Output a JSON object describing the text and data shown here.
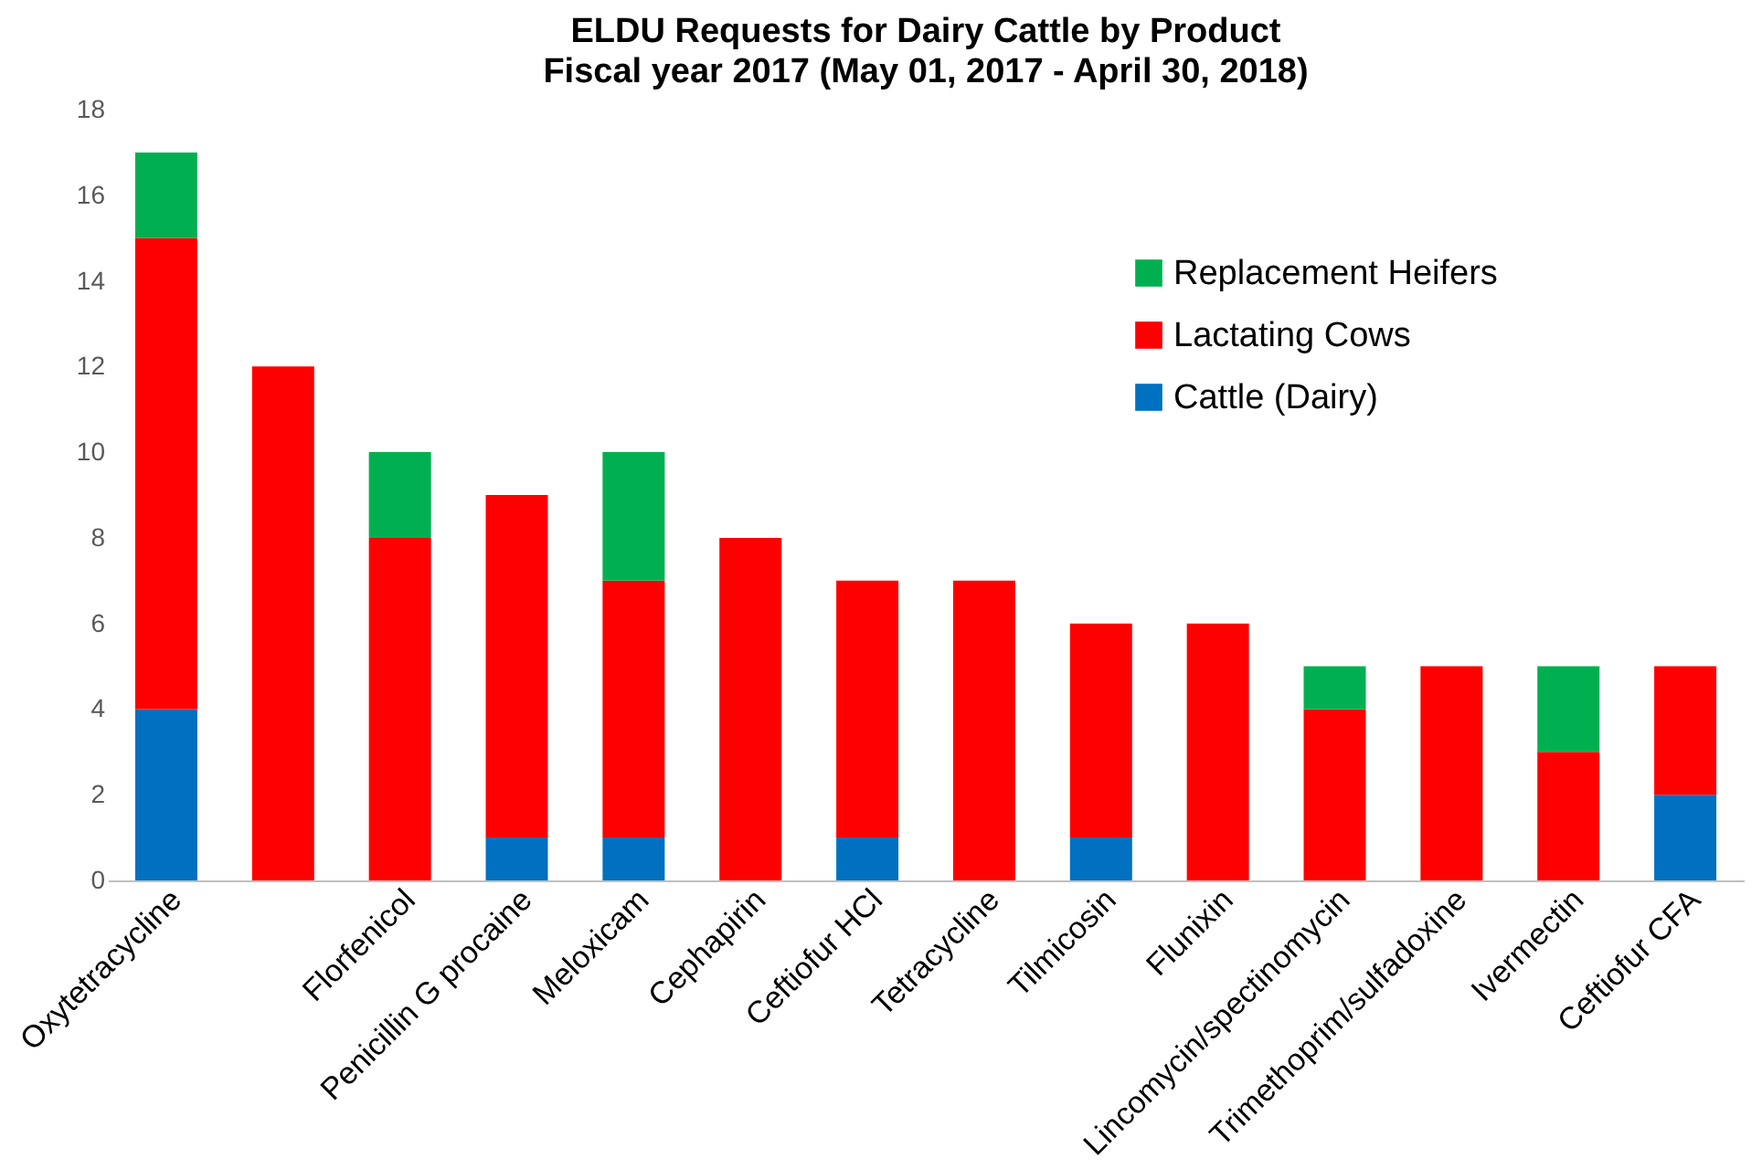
{
  "chart_data": {
    "type": "bar",
    "stacked": true,
    "title": "ELDU Requests for Dairy Cattle by Product",
    "subtitle": "Fiscal year 2017 (May 01, 2017 - April 30, 2018)",
    "categories": [
      "Oxytetracycline",
      null,
      "Florfenicol",
      "Penicillin G procaine",
      "Meloxicam",
      "Cephapirin",
      "Ceftiofur HCl",
      "Tetracycline",
      "Tilmicosin",
      "Flunixin",
      "Lincomycin/spectinomycin",
      "Trimethoprim/sulfadoxine",
      "Ivermectin",
      "Ceftiofur CFA"
    ],
    "series": [
      {
        "name": "Cattle (Dairy)",
        "color": "#0070c0",
        "values": [
          4,
          null,
          null,
          1,
          1,
          null,
          1,
          null,
          1,
          null,
          null,
          null,
          null,
          2
        ]
      },
      {
        "name": "Lactating Cows",
        "color": "#ff0000",
        "values": [
          11,
          12,
          8,
          8,
          6,
          8,
          6,
          7,
          5,
          6,
          4,
          5,
          3,
          3
        ]
      },
      {
        "name": "Replacement Heifers",
        "color": "#00b050",
        "values": [
          2,
          null,
          2,
          null,
          3,
          null,
          null,
          null,
          null,
          null,
          1,
          null,
          2,
          null
        ]
      }
    ],
    "ylim": [
      0,
      18
    ],
    "yticks": [
      0,
      2,
      4,
      6,
      8,
      10,
      12,
      14,
      16,
      18
    ],
    "grid": false,
    "legend": "right"
  }
}
